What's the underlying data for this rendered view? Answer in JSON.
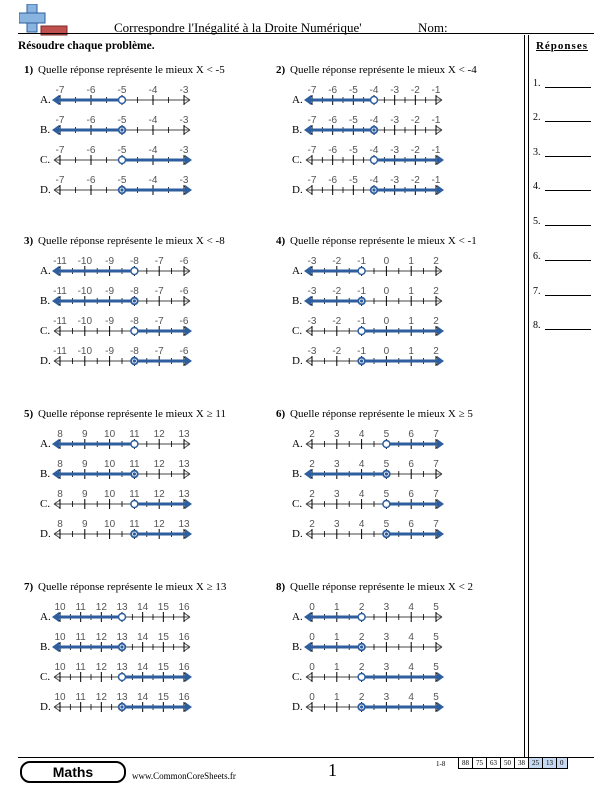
{
  "header": {
    "title": "Correspondre l'Inégalité à la Droite Numérique'",
    "name_label": "Nom:",
    "instructions": "Résoudre chaque problème."
  },
  "answers": {
    "title": "Réponses",
    "labels": [
      "1.",
      "2.",
      "3.",
      "4.",
      "5.",
      "6.",
      "7.",
      "8."
    ]
  },
  "footer": {
    "brand": "Maths",
    "site": "www.CommonCoreSheets.fr",
    "page": "1",
    "score_label": "1-8",
    "scores": [
      "88",
      "75",
      "63",
      "50",
      "38",
      "25",
      "13",
      "0"
    ]
  },
  "colors": {
    "line": "#2e5e9e",
    "tick": "#000000",
    "label": "#555555"
  },
  "problems": [
    {
      "number": "1)",
      "question": "Quelle réponse représente le mieux X < -5",
      "ticks": [
        "-7",
        "-6",
        "-5",
        "-4",
        "-3"
      ],
      "options": [
        {
          "letter": "A.",
          "point": 2,
          "closed": false,
          "direction": "left"
        },
        {
          "letter": "B.",
          "point": 2,
          "closed": true,
          "direction": "left"
        },
        {
          "letter": "C.",
          "point": 2,
          "closed": false,
          "direction": "right"
        },
        {
          "letter": "D.",
          "point": 2,
          "closed": true,
          "direction": "right"
        }
      ]
    },
    {
      "number": "2)",
      "question": "Quelle réponse représente le mieux X < -4",
      "ticks": [
        "-7",
        "-6",
        "-5",
        "-4",
        "-3",
        "-2",
        "-1"
      ],
      "options": [
        {
          "letter": "A.",
          "point": 3,
          "closed": false,
          "direction": "left"
        },
        {
          "letter": "B.",
          "point": 3,
          "closed": true,
          "direction": "left"
        },
        {
          "letter": "C.",
          "point": 3,
          "closed": false,
          "direction": "right"
        },
        {
          "letter": "D.",
          "point": 3,
          "closed": true,
          "direction": "right"
        }
      ]
    },
    {
      "number": "3)",
      "question": "Quelle réponse représente le mieux X < -8",
      "ticks": [
        "-11",
        "-10",
        "-9",
        "-8",
        "-7",
        "-6"
      ],
      "options": [
        {
          "letter": "A.",
          "point": 3,
          "closed": false,
          "direction": "left"
        },
        {
          "letter": "B.",
          "point": 3,
          "closed": true,
          "direction": "left"
        },
        {
          "letter": "C.",
          "point": 3,
          "closed": false,
          "direction": "right"
        },
        {
          "letter": "D.",
          "point": 3,
          "closed": true,
          "direction": "right"
        }
      ]
    },
    {
      "number": "4)",
      "question": "Quelle réponse représente le mieux X < -1",
      "ticks": [
        "-3",
        "-2",
        "-1",
        "0",
        "1",
        "2"
      ],
      "options": [
        {
          "letter": "A.",
          "point": 2,
          "closed": false,
          "direction": "left"
        },
        {
          "letter": "B.",
          "point": 2,
          "closed": true,
          "direction": "left"
        },
        {
          "letter": "C.",
          "point": 2,
          "closed": false,
          "direction": "right"
        },
        {
          "letter": "D.",
          "point": 2,
          "closed": true,
          "direction": "right"
        }
      ]
    },
    {
      "number": "5)",
      "question": "Quelle réponse représente le mieux X ≥ 11",
      "ticks": [
        "8",
        "9",
        "10",
        "11",
        "12",
        "13"
      ],
      "options": [
        {
          "letter": "A.",
          "point": 3,
          "closed": false,
          "direction": "left"
        },
        {
          "letter": "B.",
          "point": 3,
          "closed": true,
          "direction": "left"
        },
        {
          "letter": "C.",
          "point": 3,
          "closed": false,
          "direction": "right"
        },
        {
          "letter": "D.",
          "point": 3,
          "closed": true,
          "direction": "right"
        }
      ]
    },
    {
      "number": "6)",
      "question": "Quelle réponse représente le mieux X ≥ 5",
      "ticks": [
        "2",
        "3",
        "4",
        "5",
        "6",
        "7"
      ],
      "options": [
        {
          "letter": "A.",
          "point": 3,
          "closed": false,
          "direction": "right"
        },
        {
          "letter": "B.",
          "point": 3,
          "closed": true,
          "direction": "left"
        },
        {
          "letter": "C.",
          "point": 3,
          "closed": false,
          "direction": "right"
        },
        {
          "letter": "D.",
          "point": 3,
          "closed": true,
          "direction": "right"
        }
      ]
    },
    {
      "number": "7)",
      "question": "Quelle réponse représente le mieux X ≥ 13",
      "ticks": [
        "10",
        "11",
        "12",
        "13",
        "14",
        "15",
        "16"
      ],
      "options": [
        {
          "letter": "A.",
          "point": 3,
          "closed": false,
          "direction": "left"
        },
        {
          "letter": "B.",
          "point": 3,
          "closed": true,
          "direction": "left"
        },
        {
          "letter": "C.",
          "point": 3,
          "closed": false,
          "direction": "right"
        },
        {
          "letter": "D.",
          "point": 3,
          "closed": true,
          "direction": "right"
        }
      ]
    },
    {
      "number": "8)",
      "question": "Quelle réponse représente le mieux X < 2",
      "ticks": [
        "0",
        "1",
        "2",
        "3",
        "4",
        "5"
      ],
      "options": [
        {
          "letter": "A.",
          "point": 2,
          "closed": false,
          "direction": "left"
        },
        {
          "letter": "B.",
          "point": 2,
          "closed": true,
          "direction": "left"
        },
        {
          "letter": "C.",
          "point": 2,
          "closed": false,
          "direction": "right"
        },
        {
          "letter": "D.",
          "point": 2,
          "closed": true,
          "direction": "right"
        }
      ]
    }
  ]
}
